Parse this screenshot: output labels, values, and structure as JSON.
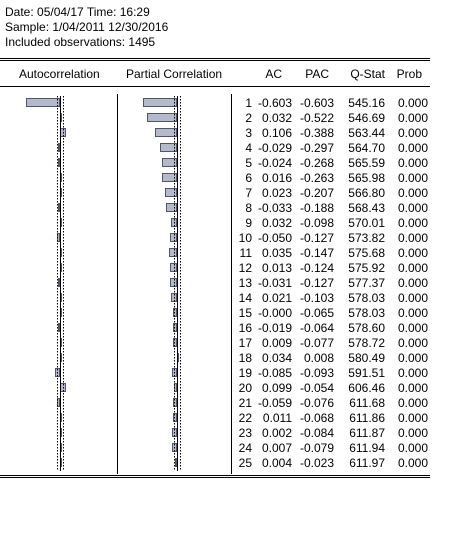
{
  "header": {
    "date_line": "Date: 05/04/17   Time: 16:29",
    "sample_line": "Sample: 1/04/2011 12/30/2016",
    "obs_line": "Included observations: 1495"
  },
  "columns": {
    "autocorrelation": "Autocorrelation",
    "partial_correlation": "Partial Correlation",
    "ac": "AC",
    "pac": "PAC",
    "qstat": "Q-Stat",
    "prob": "Prob"
  },
  "rows": [
    {
      "lag": "1",
      "ac": "-0.603",
      "pac": "-0.603",
      "q": "545.16",
      "p": "0.000"
    },
    {
      "lag": "2",
      "ac": "0.032",
      "pac": "-0.522",
      "q": "546.69",
      "p": "0.000"
    },
    {
      "lag": "3",
      "ac": "0.106",
      "pac": "-0.388",
      "q": "563.44",
      "p": "0.000"
    },
    {
      "lag": "4",
      "ac": "-0.029",
      "pac": "-0.297",
      "q": "564.70",
      "p": "0.000"
    },
    {
      "lag": "5",
      "ac": "-0.024",
      "pac": "-0.268",
      "q": "565.59",
      "p": "0.000"
    },
    {
      "lag": "6",
      "ac": "0.016",
      "pac": "-0.263",
      "q": "565.98",
      "p": "0.000"
    },
    {
      "lag": "7",
      "ac": "0.023",
      "pac": "-0.207",
      "q": "566.80",
      "p": "0.000"
    },
    {
      "lag": "8",
      "ac": "-0.033",
      "pac": "-0.188",
      "q": "568.43",
      "p": "0.000"
    },
    {
      "lag": "9",
      "ac": "0.032",
      "pac": "-0.098",
      "q": "570.01",
      "p": "0.000"
    },
    {
      "lag": "10",
      "ac": "-0.050",
      "pac": "-0.127",
      "q": "573.82",
      "p": "0.000"
    },
    {
      "lag": "11",
      "ac": "0.035",
      "pac": "-0.147",
      "q": "575.68",
      "p": "0.000"
    },
    {
      "lag": "12",
      "ac": "0.013",
      "pac": "-0.124",
      "q": "575.92",
      "p": "0.000"
    },
    {
      "lag": "13",
      "ac": "-0.031",
      "pac": "-0.127",
      "q": "577.37",
      "p": "0.000"
    },
    {
      "lag": "14",
      "ac": "0.021",
      "pac": "-0.103",
      "q": "578.03",
      "p": "0.000"
    },
    {
      "lag": "15",
      "ac": "-0.000",
      "pac": "-0.065",
      "q": "578.03",
      "p": "0.000"
    },
    {
      "lag": "16",
      "ac": "-0.019",
      "pac": "-0.064",
      "q": "578.60",
      "p": "0.000"
    },
    {
      "lag": "17",
      "ac": "0.009",
      "pac": "-0.077",
      "q": "578.72",
      "p": "0.000"
    },
    {
      "lag": "18",
      "ac": "0.034",
      "pac": "0.008",
      "q": "580.49",
      "p": "0.000"
    },
    {
      "lag": "19",
      "ac": "-0.085",
      "pac": "-0.093",
      "q": "591.51",
      "p": "0.000"
    },
    {
      "lag": "20",
      "ac": "0.099",
      "pac": "-0.054",
      "q": "606.46",
      "p": "0.000"
    },
    {
      "lag": "21",
      "ac": "-0.059",
      "pac": "-0.076",
      "q": "611.68",
      "p": "0.000"
    },
    {
      "lag": "22",
      "ac": "0.011",
      "pac": "-0.068",
      "q": "611.86",
      "p": "0.000"
    },
    {
      "lag": "23",
      "ac": "0.002",
      "pac": "-0.084",
      "q": "611.87",
      "p": "0.000"
    },
    {
      "lag": "24",
      "ac": "0.007",
      "pac": "-0.079",
      "q": "611.94",
      "p": "0.000"
    },
    {
      "lag": "25",
      "ac": "0.004",
      "pac": "-0.023",
      "q": "611.97",
      "p": "0.000"
    }
  ],
  "colors": {
    "bar_fill": "#b4b9cc",
    "bar_border": "#505567"
  }
}
